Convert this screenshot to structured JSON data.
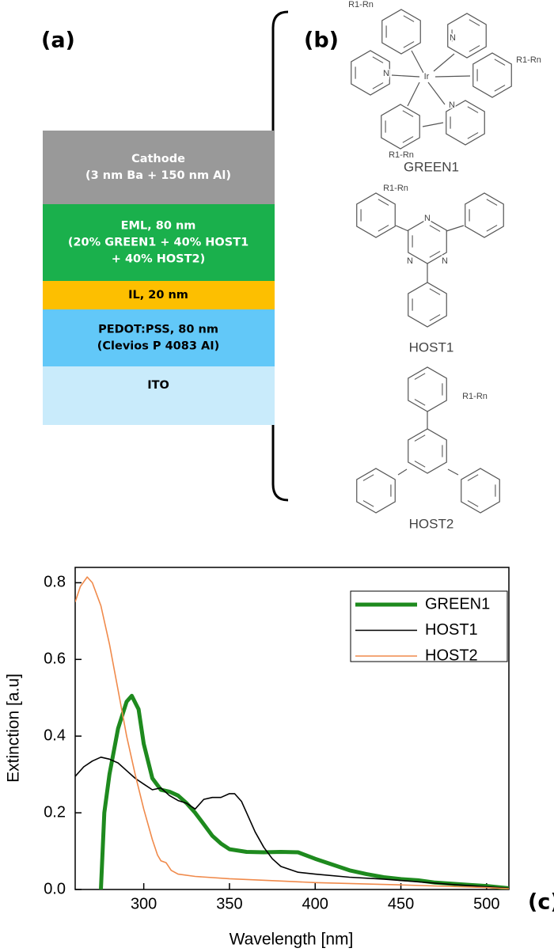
{
  "panels": [
    "(a)",
    "(b)",
    "(c)"
  ],
  "stack": [
    {
      "lines": [
        "Cathode",
        "(3 nm Ba + 150 nm Al)"
      ],
      "color": "#999999",
      "text_color": "#ffffff"
    },
    {
      "lines": [
        "EML, 80 nm",
        "(20% GREEN1 + 40% HOST1",
        "+ 40% HOST2)"
      ],
      "color": "#1ab04c",
      "text_color": "#ffffff"
    },
    {
      "lines": [
        "IL, 20 nm"
      ],
      "color": "#fdbf00",
      "text_color": "#000000"
    },
    {
      "lines": [
        "PEDOT:PSS, 80 nm",
        "(Clevios P 4083 AI)"
      ],
      "color": "#62c8f8",
      "text_color": "#000000"
    },
    {
      "lines": [
        "ITO"
      ],
      "color": "#c9ebfb",
      "text_color": "#000000"
    }
  ],
  "molecules": [
    {
      "name": "GREEN1",
      "atoms": [
        "R1-Rn",
        "N",
        "Ir",
        "N",
        "R1-Rn",
        "N",
        "R1-Rn"
      ]
    },
    {
      "name": "HOST1",
      "atoms": [
        "R1-Rn",
        "N",
        "N",
        "N"
      ]
    },
    {
      "name": "HOST2",
      "atoms": [
        "R1-Rn"
      ]
    }
  ],
  "chart_data": {
    "type": "line",
    "x_label": "Wavelength [nm]",
    "y_label": "Extinction [a.u]",
    "xlim": [
      260,
      513
    ],
    "ylim": [
      0,
      0.84
    ],
    "xticks": [
      300,
      350,
      400,
      450,
      500
    ],
    "yticks": [
      {
        "value": 0,
        "label": "0.0"
      },
      0.2,
      0.4,
      0.6,
      0.8
    ],
    "legend": "upper right",
    "series": [
      {
        "name": "GREEN1",
        "color": "#1e8a1e",
        "width": 5,
        "x": [
          275,
          277,
          280,
          285,
          290,
          293,
          297,
          300,
          305,
          310,
          315,
          320,
          325,
          330,
          335,
          340,
          345,
          350,
          360,
          370,
          380,
          390,
          400,
          410,
          420,
          430,
          440,
          450,
          460,
          470,
          480,
          490,
          500,
          513
        ],
        "values": [
          0,
          0.2,
          0.3,
          0.42,
          0.49,
          0.505,
          0.47,
          0.38,
          0.29,
          0.26,
          0.255,
          0.245,
          0.225,
          0.2,
          0.17,
          0.14,
          0.12,
          0.105,
          0.098,
          0.097,
          0.098,
          0.097,
          0.08,
          0.065,
          0.05,
          0.04,
          0.032,
          0.027,
          0.024,
          0.018,
          0.015,
          0.012,
          0.009,
          0.003
        ]
      },
      {
        "name": "HOST1",
        "color": "#000000",
        "width": 1.6,
        "x": [
          260,
          265,
          270,
          275,
          280,
          285,
          290,
          295,
          300,
          305,
          310,
          315,
          320,
          325,
          330,
          335,
          340,
          345,
          350,
          353,
          357,
          360,
          365,
          370,
          375,
          380,
          390,
          400,
          420,
          440,
          460,
          480,
          500,
          513
        ],
        "values": [
          0.295,
          0.32,
          0.335,
          0.345,
          0.34,
          0.33,
          0.31,
          0.29,
          0.275,
          0.26,
          0.265,
          0.245,
          0.232,
          0.225,
          0.21,
          0.235,
          0.24,
          0.24,
          0.25,
          0.25,
          0.23,
          0.2,
          0.15,
          0.11,
          0.08,
          0.06,
          0.045,
          0.04,
          0.032,
          0.027,
          0.02,
          0.013,
          0.007,
          0.003
        ]
      },
      {
        "name": "HOST2",
        "color": "#f08a4b",
        "width": 1.6,
        "x": [
          260,
          263,
          267,
          270,
          275,
          280,
          285,
          290,
          295,
          300,
          305,
          308,
          310,
          313,
          316,
          320,
          330,
          350,
          380,
          400,
          450,
          500,
          513
        ],
        "values": [
          0.75,
          0.79,
          0.815,
          0.8,
          0.74,
          0.64,
          0.52,
          0.4,
          0.3,
          0.21,
          0.13,
          0.09,
          0.075,
          0.07,
          0.05,
          0.04,
          0.034,
          0.028,
          0.022,
          0.018,
          0.012,
          0.005,
          0.002
        ]
      }
    ]
  }
}
